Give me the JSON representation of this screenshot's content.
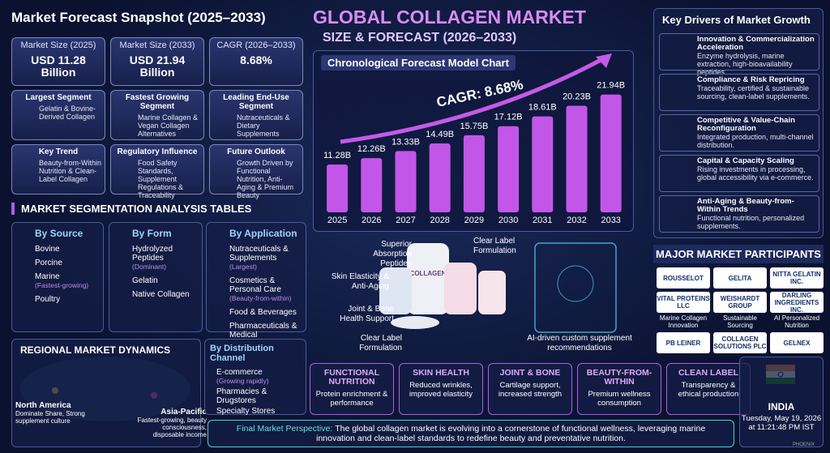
{
  "header": {
    "title": "GLOBAL COLLAGEN MARKET",
    "subtitle": "SIZE & FORECAST (2026–2033)"
  },
  "snapshot": {
    "title": "Market Forecast Snapshot (2025–2033)",
    "metrics": [
      {
        "label": "Market Size (2025)",
        "value": "USD 11.28 Billion"
      },
      {
        "label": "Market Size (2033)",
        "value": "USD 21.94 Billion"
      },
      {
        "label": "CAGR (2026–2033)",
        "value": "8.68%"
      }
    ],
    "cards": [
      {
        "title": "Largest Segment",
        "text": "Gelatin & Bovine-Derived Collagen"
      },
      {
        "title": "Fastest Growing Segment",
        "text": "Marine Collagen & Vegan Collagen Alternatives"
      },
      {
        "title": "Leading End-Use Segment",
        "text": "Nutraceuticals & Dietary Supplements"
      },
      {
        "title": "Key Trend",
        "text": "Beauty-from-Within Nutrition & Clean-Label Collagen"
      },
      {
        "title": "Regulatory Influence",
        "text": "Food Safety Standards, Supplement Regulations & Traceability"
      },
      {
        "title": "Future Outlook",
        "text": "Growth Driven by Functional Nutrition, Anti-Aging & Premium Beauty"
      }
    ]
  },
  "chart_data": {
    "type": "bar",
    "title": "Chronological Forecast Model Chart",
    "categories": [
      "2025",
      "2026",
      "2027",
      "2028",
      "2029",
      "2030",
      "2031",
      "2032",
      "2033"
    ],
    "values": [
      11.28,
      12.26,
      13.33,
      14.49,
      15.75,
      17.12,
      18.61,
      20.23,
      21.94
    ],
    "value_labels": [
      "11.28B",
      "12.26B",
      "13.33B",
      "14.49B",
      "15.75B",
      "17.12B",
      "18.61B",
      "20.23B",
      "21.94B"
    ],
    "color": "#c256e8",
    "ylim": [
      4,
      24
    ],
    "annotation": "CAGR: 8.68%"
  },
  "drivers": {
    "title": "Key Drivers of Market Growth",
    "items": [
      {
        "title": "Innovation & Commercialization Acceleration",
        "text": "Enzyme hydrolysis, marine extraction, high-bioavailability peptides."
      },
      {
        "title": "Compliance & Risk Repricing",
        "text": "Traceability, certified & sustainable sourcing, clean-label supplements."
      },
      {
        "title": "Competitive & Value-Chain Reconfiguration",
        "text": "Integrated production, multi-channel distribution."
      },
      {
        "title": "Capital & Capacity Scaling",
        "text": "Rising investments in processing, global accessibility via e-commerce."
      },
      {
        "title": "Anti-Aging & Beauty-from-Within Trends",
        "text": "Functional nutrition, personalized supplements."
      }
    ]
  },
  "segmentation": {
    "title": "MARKET SEGMENTATION ANALYSIS TABLES",
    "columns": [
      {
        "title": "By Source",
        "items": [
          {
            "label": "Bovine"
          },
          {
            "label": "Porcine"
          },
          {
            "label": "Marine",
            "note": "(Fastest-growing)"
          },
          {
            "label": "Poultry"
          }
        ]
      },
      {
        "title": "By Form",
        "items": [
          {
            "label": "Hydrolyzed Peptides",
            "note": "(Dominant)"
          },
          {
            "label": "Gelatin"
          },
          {
            "label": "Native Collagen"
          }
        ]
      },
      {
        "title": "By Application",
        "items": [
          {
            "label": "Nutraceuticals & Supplements",
            "note": "(Largest)"
          },
          {
            "label": "Cosmetics & Personal Care",
            "note": "(Beauty-from-within)"
          },
          {
            "label": "Food & Beverages"
          },
          {
            "label": "Pharmaceuticals & Medical"
          }
        ]
      }
    ]
  },
  "regional": {
    "title": "REGIONAL MARKET DYNAMICS",
    "regions": [
      {
        "name": "North America",
        "text": "Dominate Share, Strong supplement culture"
      },
      {
        "name": "Asia-Pacific",
        "text": "Fastest-growing, beauty consciousness, disposable income"
      }
    ]
  },
  "distribution": {
    "title": "By Distribution Channel",
    "items": [
      {
        "label": "E-commerce",
        "note": "(Growing rapidly)"
      },
      {
        "label": "Pharmacies & Drugstores"
      },
      {
        "label": "Specialty Stores"
      }
    ]
  },
  "products": {
    "bottle_label": "COLLAGEN",
    "callouts": [
      "Superior Absorption Peptides",
      "Clear Label Formulation",
      "Skin Elasticity & Anti-Aging",
      "Joint & Bone Health Support",
      "Clear Label Formulation"
    ],
    "ai_note": "AI-driven custom supplement recommendations"
  },
  "participants": {
    "title": "MAJOR MARKET PARTICIPANTS",
    "companies": [
      {
        "name": "ROUSSELOT"
      },
      {
        "name": "GELITA"
      },
      {
        "name": "NITTA GELATIN INC."
      },
      {
        "name": "VITAL PROTEINS LLC",
        "caption": "Marine Collagen Innovation"
      },
      {
        "name": "WEISHARDT GROUP",
        "caption": "Sustainable Sourcing"
      },
      {
        "name": "DARLING INGREDIENTS INC.",
        "caption": "AI Personalized Nutrition"
      },
      {
        "name": "PB LEINER"
      },
      {
        "name": "COLLAGEN SOLUTIONS PLC"
      },
      {
        "name": "GELNEX"
      }
    ]
  },
  "benefits": [
    {
      "title": "FUNCTIONAL NUTRITION",
      "text": "Protein enrichment & performance"
    },
    {
      "title": "SKIN HEALTH",
      "text": "Reduced wrinkles, improved elasticity"
    },
    {
      "title": "JOINT & BONE",
      "text": "Cartilage support, increased strength"
    },
    {
      "title": "BEAUTY-FROM-WITHIN",
      "text": "Premium wellness consumption"
    },
    {
      "title": "CLEAN LABEL",
      "text": "Transparency & ethical production"
    }
  ],
  "footer": {
    "label": "Final Market Perspective:",
    "text": "The global collagen market is evolving into a cornerstone of functional wellness, leveraging marine innovation and clean-label standards to redefine beauty and preventative nutrition."
  },
  "location": {
    "country": "INDIA",
    "date": "Tuesday, May 19, 2026",
    "time": "at 11:21:48 PM IST",
    "watermark": "PHOENIX"
  }
}
